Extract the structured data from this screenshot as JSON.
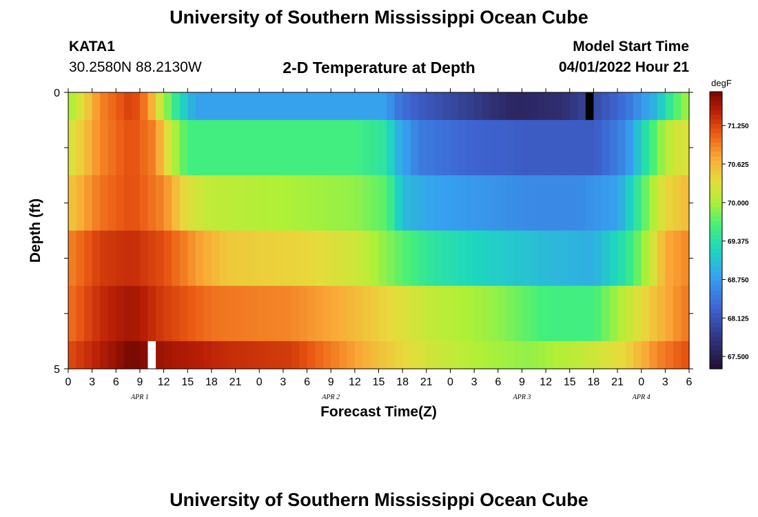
{
  "header": {
    "title": "University of Southern Mississippi Ocean Cube",
    "station_id": "KATA1",
    "station_coords": "30.2580N  88.2130W",
    "plot_title": "2-D Temperature at Depth",
    "model_start_label": "Model Start Time",
    "model_start_value": "04/01/2022 Hour 21"
  },
  "footer": {
    "title": "University of Southern Mississippi Ocean Cube"
  },
  "colors": {
    "background": "#ffffff",
    "axis": "#000000",
    "missing_low": "#000000",
    "missing_high": "#ffffff"
  },
  "chart_data": {
    "type": "heatmap",
    "xlabel": "Forecast Time(Z)",
    "ylabel": "Depth (ft)",
    "y_tick_labels": [
      "0",
      "5"
    ],
    "ylim": [
      0,
      5
    ],
    "x_tick_labels": [
      "0",
      "3",
      "6",
      "9",
      "12",
      "15",
      "18",
      "21",
      "0",
      "3",
      "6",
      "9",
      "12",
      "15",
      "18",
      "21",
      "0",
      "3",
      "6",
      "9",
      "12",
      "15",
      "18",
      "21",
      "0",
      "3",
      "6"
    ],
    "date_labels": [
      {
        "label": "APR 1",
        "hour": 9
      },
      {
        "label": "APR 2",
        "hour": 33
      },
      {
        "label": "APR 3",
        "hour": 57
      },
      {
        "label": "APR 4",
        "hour": 72
      }
    ],
    "hours_total": 78,
    "colorbar": {
      "unit": "degF",
      "min": 67.3,
      "max": 71.8,
      "ticks": [
        "71.250",
        "70.625",
        "70.000",
        "69.375",
        "68.750",
        "68.125",
        "67.500"
      ]
    },
    "layers": [
      {
        "depth_range": [
          0,
          0.5
        ],
        "keyframes": [
          [
            0,
            69.9
          ],
          [
            4,
            70.9
          ],
          [
            8,
            71.3
          ],
          [
            10,
            70.9
          ],
          [
            12,
            70.0
          ],
          [
            14,
            69.3
          ],
          [
            16,
            68.8
          ],
          [
            40,
            68.8
          ],
          [
            41,
            68.5
          ],
          [
            44,
            68.2
          ],
          [
            50,
            67.9
          ],
          [
            56,
            67.6
          ],
          [
            62,
            67.7
          ],
          [
            66,
            68.0
          ],
          [
            70,
            68.4
          ],
          [
            72,
            68.7
          ],
          [
            74,
            69.0
          ],
          [
            76,
            69.6
          ],
          [
            78,
            70.0
          ]
        ]
      },
      {
        "depth_range": [
          0.5,
          1.5
        ],
        "keyframes": [
          [
            0,
            70.2
          ],
          [
            4,
            70.9
          ],
          [
            8,
            71.2
          ],
          [
            11,
            70.9
          ],
          [
            13,
            70.1
          ],
          [
            15,
            69.6
          ],
          [
            18,
            69.6
          ],
          [
            36,
            69.6
          ],
          [
            40,
            69.4
          ],
          [
            41,
            69.0
          ],
          [
            44,
            68.5
          ],
          [
            50,
            68.3
          ],
          [
            58,
            68.2
          ],
          [
            66,
            68.2
          ],
          [
            70,
            68.6
          ],
          [
            72,
            69.2
          ],
          [
            74,
            69.8
          ],
          [
            76,
            70.2
          ],
          [
            78,
            70.3
          ]
        ]
      },
      {
        "depth_range": [
          1.5,
          2.5
        ],
        "keyframes": [
          [
            0,
            70.5
          ],
          [
            4,
            71.0
          ],
          [
            8,
            71.2
          ],
          [
            12,
            70.9
          ],
          [
            15,
            70.3
          ],
          [
            18,
            70.1
          ],
          [
            36,
            69.9
          ],
          [
            40,
            69.7
          ],
          [
            42,
            69.0
          ],
          [
            46,
            68.8
          ],
          [
            58,
            68.6
          ],
          [
            64,
            68.6
          ],
          [
            69,
            68.8
          ],
          [
            71,
            69.3
          ],
          [
            73,
            69.9
          ],
          [
            75,
            70.4
          ],
          [
            78,
            70.6
          ]
        ]
      },
      {
        "depth_range": [
          2.5,
          3.5
        ],
        "keyframes": [
          [
            0,
            70.9
          ],
          [
            4,
            71.3
          ],
          [
            8,
            71.4
          ],
          [
            12,
            71.2
          ],
          [
            16,
            70.8
          ],
          [
            20,
            70.5
          ],
          [
            30,
            70.4
          ],
          [
            36,
            70.2
          ],
          [
            42,
            69.7
          ],
          [
            46,
            69.4
          ],
          [
            52,
            69.2
          ],
          [
            60,
            69.0
          ],
          [
            66,
            68.9
          ],
          [
            70,
            69.4
          ],
          [
            73,
            70.1
          ],
          [
            75,
            70.7
          ],
          [
            78,
            70.9
          ]
        ]
      },
      {
        "depth_range": [
          3.5,
          4.5
        ],
        "keyframes": [
          [
            0,
            71.0
          ],
          [
            4,
            71.4
          ],
          [
            8,
            71.6
          ],
          [
            12,
            71.3
          ],
          [
            18,
            71.0
          ],
          [
            28,
            70.9
          ],
          [
            34,
            70.7
          ],
          [
            40,
            70.4
          ],
          [
            46,
            70.1
          ],
          [
            54,
            69.9
          ],
          [
            60,
            69.6
          ],
          [
            66,
            69.6
          ],
          [
            70,
            70.1
          ],
          [
            74,
            70.6
          ],
          [
            78,
            71.0
          ]
        ]
      },
      {
        "depth_range": [
          4.5,
          5
        ],
        "keyframes": [
          [
            0,
            71.2
          ],
          [
            4,
            71.5
          ],
          [
            8,
            71.8
          ],
          [
            12,
            71.6
          ],
          [
            20,
            71.4
          ],
          [
            28,
            71.3
          ],
          [
            34,
            70.9
          ],
          [
            40,
            70.5
          ],
          [
            46,
            70.2
          ],
          [
            52,
            70.0
          ],
          [
            58,
            69.9
          ],
          [
            64,
            70.1
          ],
          [
            70,
            70.4
          ],
          [
            74,
            70.9
          ],
          [
            78,
            71.2
          ]
        ]
      }
    ],
    "missing_cells": [
      {
        "layer": 0,
        "hour": 65,
        "color_key": "missing_low"
      },
      {
        "layer": 5,
        "hour": 10,
        "color_key": "missing_high"
      }
    ]
  }
}
